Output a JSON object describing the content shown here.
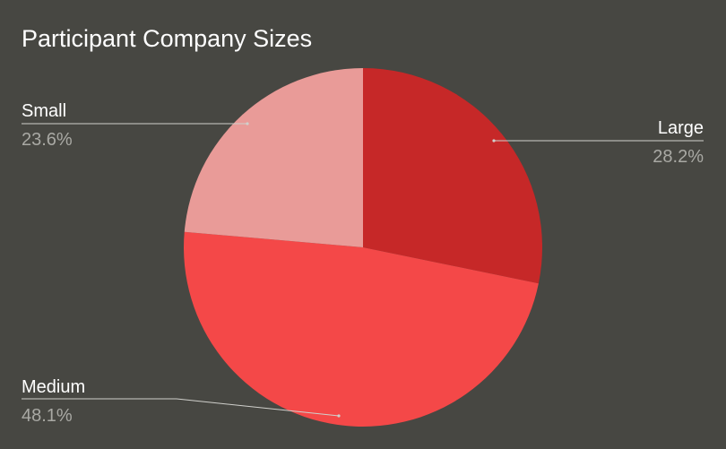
{
  "chart_data": {
    "type": "pie",
    "title": "Participant Company Sizes",
    "slices": [
      {
        "label": "Large",
        "value": 28.2,
        "value_label": "28.2%",
        "color": "#c62828"
      },
      {
        "label": "Medium",
        "value": 48.1,
        "value_label": "48.1%",
        "color": "#f44848"
      },
      {
        "label": "Small",
        "value": 23.6,
        "value_label": "23.6%",
        "color": "#e99b98"
      }
    ],
    "start_angle": "12 o'clock",
    "direction": "clockwise",
    "legend": "none"
  }
}
